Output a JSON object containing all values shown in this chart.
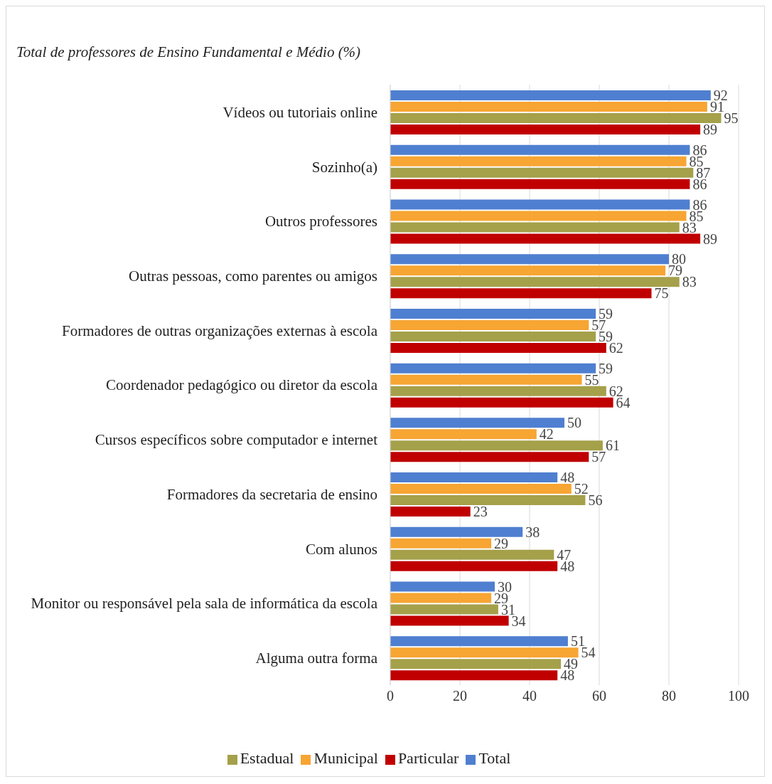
{
  "chart_data": {
    "type": "bar",
    "orientation": "horizontal",
    "title": "Total de professores de Ensino Fundamental e Médio (%)",
    "categories": [
      "Vídeos ou tutoriais online",
      "Sozinho(a)",
      "Outros professores",
      "Outras pessoas, como parentes ou amigos",
      "Formadores de outras organizações externas à escola",
      "Coordenador pedagógico ou diretor da escola",
      "Cursos específicos sobre computador e internet",
      "Formadores da secretaria de ensino",
      "Com alunos",
      "Monitor ou responsável pela sala de informática da escola",
      "Alguma outra forma"
    ],
    "series": [
      {
        "name": "Total",
        "color": "#4f7fd0",
        "values": [
          92,
          86,
          86,
          80,
          59,
          59,
          50,
          48,
          38,
          30,
          51
        ]
      },
      {
        "name": "Municipal",
        "color": "#f7a533",
        "values": [
          91,
          85,
          85,
          79,
          57,
          55,
          42,
          52,
          29,
          29,
          54
        ]
      },
      {
        "name": "Estadual",
        "color": "#a5a04a",
        "values": [
          95,
          87,
          83,
          83,
          59,
          62,
          61,
          56,
          47,
          31,
          49
        ]
      },
      {
        "name": "Particular",
        "color": "#c00000",
        "values": [
          89,
          86,
          89,
          75,
          62,
          64,
          57,
          23,
          48,
          34,
          48
        ]
      }
    ],
    "xlim": [
      0,
      100
    ],
    "xticks": [
      0,
      20,
      40,
      60,
      80,
      100
    ],
    "grid": "x",
    "legend": "bottom",
    "data_labels": true
  }
}
